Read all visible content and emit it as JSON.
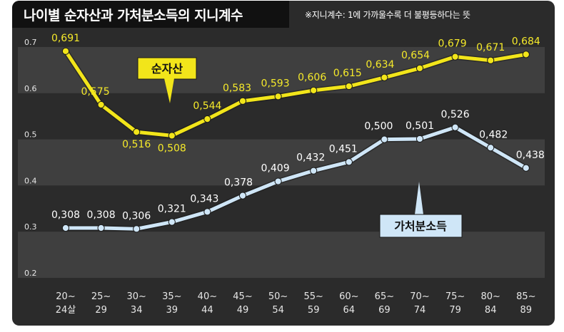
{
  "header": {
    "title": "나이별 순자산과 가처분소득의 지니계수",
    "note": "※지니계수: 1에 가까울수록 더 불평등하다는 뜻"
  },
  "colors": {
    "background": "#2b2b2b",
    "band": "#3f3f3f",
    "net_assets": "#f2e51a",
    "disposable_income": "#cfe6f7",
    "net_assets_text": "#f6ea2a",
    "income_text": "#ffffff",
    "tick_text": "#e6e6e6"
  },
  "chart_data": {
    "type": "line",
    "categories": [
      "20~24살",
      "25~29",
      "30~34",
      "35~39",
      "40~44",
      "45~49",
      "50~54",
      "55~59",
      "60~64",
      "65~69",
      "70~74",
      "75~79",
      "80~84",
      "85~89"
    ],
    "category_lines": [
      [
        "20~",
        "24살"
      ],
      [
        "25~",
        "29"
      ],
      [
        "30~",
        "34"
      ],
      [
        "35~",
        "39"
      ],
      [
        "40~",
        "44"
      ],
      [
        "45~",
        "49"
      ],
      [
        "50~",
        "54"
      ],
      [
        "55~",
        "59"
      ],
      [
        "60~",
        "64"
      ],
      [
        "65~",
        "69"
      ],
      [
        "70~",
        "74"
      ],
      [
        "75~",
        "79"
      ],
      [
        "80~",
        "84"
      ],
      [
        "85~",
        "89"
      ]
    ],
    "series": [
      {
        "name": "순자산",
        "values": [
          0.691,
          0.575,
          0.516,
          0.508,
          0.544,
          0.583,
          0.593,
          0.606,
          0.615,
          0.634,
          0.654,
          0.679,
          0.671,
          0.684
        ],
        "labels": [
          "0,691",
          "0,575",
          "0,516",
          "0,508",
          "0,544",
          "0,583",
          "0,593",
          "0,606",
          "0,615",
          "0,634",
          "0,654",
          "0,679",
          "0,671",
          "0,684"
        ]
      },
      {
        "name": "가처분소득",
        "values": [
          0.308,
          0.308,
          0.306,
          0.321,
          0.343,
          0.378,
          0.409,
          0.432,
          0.451,
          0.5,
          0.501,
          0.526,
          0.482,
          0.438
        ],
        "labels": [
          "0,308",
          "0,308",
          "0,306",
          "0,321",
          "0,343",
          "0,378",
          "0,409",
          "0,432",
          "0,451",
          "0,500",
          "0,501",
          "0,526",
          "0,482",
          "0,438"
        ]
      }
    ],
    "y_ticks": [
      "0.2",
      "0.3",
      "0.4",
      "0.5",
      "0.6",
      "0.7"
    ],
    "y_tick_values": [
      0.2,
      0.3,
      0.4,
      0.5,
      0.6,
      0.7
    ],
    "ylim": [
      0.2,
      0.72
    ],
    "grid": "alternating horizontal bands",
    "legend": "callout labels on lines"
  }
}
